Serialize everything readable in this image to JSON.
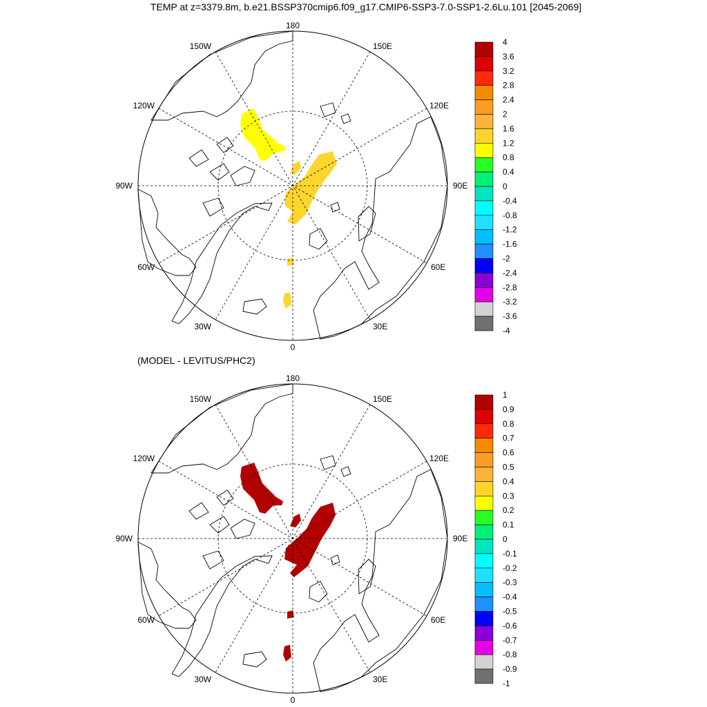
{
  "title": "TEMP at z=3379.8m, b.e21.BSSP370cmip6.f09_g17.CMIP6-SSP3-7.0-SSP1-2.6Lu.101 [2045-2069]",
  "subtitle": "(MODEL - LEVITUS/PHC2)",
  "longitude_labels": {
    "top": "180",
    "bottom": "0",
    "left_90": "90W",
    "right_90": "90E",
    "w150": "150W",
    "e150": "150E",
    "w120": "120W",
    "e120": "120E",
    "w60": "60W",
    "e60": "60E",
    "w30": "30W",
    "e30": "30E"
  },
  "colorbars": [
    {
      "labels": [
        "4",
        "3.6",
        "3.2",
        "2.8",
        "2.4",
        "2",
        "1.6",
        "1.2",
        "0.8",
        "0.4",
        "0",
        "-0.4",
        "-0.8",
        "-1.2",
        "-1.6",
        "-2",
        "-2.4",
        "-2.8",
        "-3.2",
        "-3.6",
        "-4"
      ],
      "colors": [
        "#b30000",
        "#dd0000",
        "#ff2a0a",
        "#f58a00",
        "#fb9c26",
        "#fdb33a",
        "#fed42a",
        "#ffff00",
        "#29ff26",
        "#00f07a",
        "#00e6c0",
        "#00ffff",
        "#1ee1ff",
        "#00bfff",
        "#1e90ff",
        "#0000ff",
        "#8b00d6",
        "#e600e6",
        "#d3d3d3",
        "#707070"
      ]
    },
    {
      "labels": [
        "1",
        "0.9",
        "0.8",
        "0.7",
        "0.6",
        "0.5",
        "0.4",
        "0.3",
        "0.2",
        "0.1",
        "0",
        "-0.1",
        "-0.2",
        "-0.3",
        "-0.4",
        "-0.5",
        "-0.6",
        "-0.7",
        "-0.8",
        "-0.9",
        "-1"
      ],
      "colors": [
        "#b30000",
        "#dd0000",
        "#ff2a0a",
        "#f58a00",
        "#fb9c26",
        "#fdb33a",
        "#fed42a",
        "#ffff00",
        "#29ff26",
        "#00f07a",
        "#00e6c0",
        "#00ffff",
        "#1ee1ff",
        "#00bfff",
        "#1e90ff",
        "#0000ff",
        "#8b00d6",
        "#e600e6",
        "#d3d3d3",
        "#707070"
      ]
    }
  ],
  "anomaly_fill_colors": {
    "top_yellow": "#ffff00",
    "top_gold": "#fdd52d",
    "bottom_red": "#b30000"
  }
}
